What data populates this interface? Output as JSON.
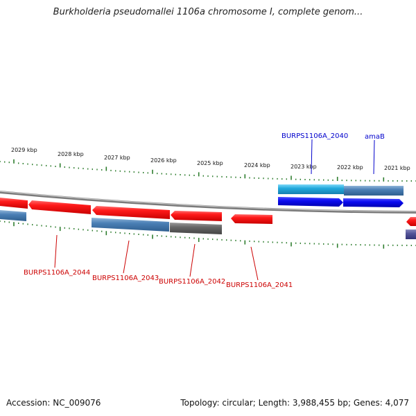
{
  "title": "Burkholderia pseudomallei 1106a chromosome I, complete genom...",
  "footer": {
    "accession": "Accession: NC_009076",
    "summary": "Topology: circular; Length: 3,988,455 bp; Genes: 4,077"
  },
  "scale_labels": [
    "2029 kbp",
    "2028 kbp",
    "2027 kbp",
    "2026 kbp",
    "2025 kbp",
    "2024 kbp",
    "2023 kbp",
    "2022 kbp",
    "2021 kbp"
  ],
  "gene_labels": {
    "burps_2044": "BURPS1106A_2044",
    "burps_2043": "BURPS1106A_2043",
    "burps_2042": "BURPS1106A_2042",
    "burps_2041": "BURPS1106A_2041",
    "burps_2040": "BURPS1106A_2040",
    "amab": "amaB"
  },
  "colors": {
    "reverse_gene": "#ee1111",
    "forward_gene": "#0000ee",
    "cds_steelblue": "#4a7fb5",
    "cds_cyan": "#22aadd",
    "cds_gray": "#666666",
    "cds_purple": "#555599",
    "tick_green": "#2e7d2e",
    "backbone": "#888888",
    "label_red": "#cc0000",
    "label_blue": "#0000cc"
  }
}
